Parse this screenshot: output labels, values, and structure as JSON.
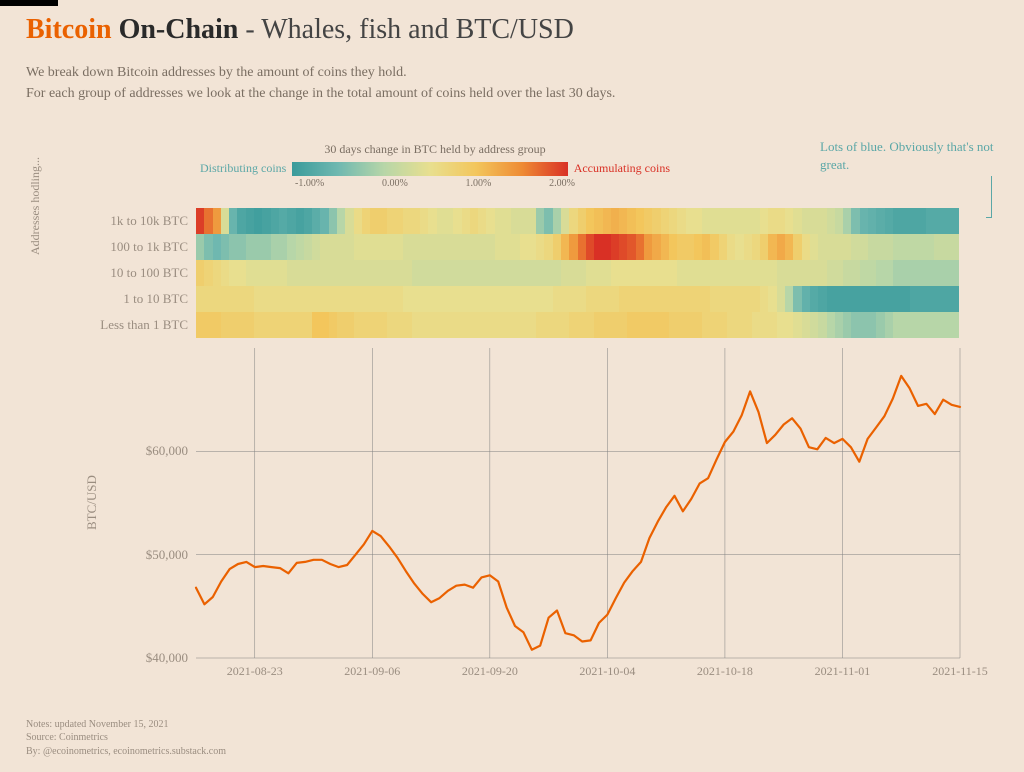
{
  "header": {
    "title_bitcoin": "Bitcoin",
    "title_onchain": "On-Chain",
    "title_rest": " - Whales, fish and BTC/USD",
    "subtitle_line1": "We break down Bitcoin addresses by the amount of coins they hold.",
    "subtitle_line2": "For each group of addresses we look at the change in the total amount of coins held over the last 30 days."
  },
  "legend": {
    "title": "30 days change in BTC held by address group",
    "distributing": "Distributing coins",
    "accumulating": "Accumulating coins",
    "tick_labels": [
      "-1.00%",
      "0.00%",
      "1.00%",
      "2.00%"
    ],
    "gradient_stops": [
      "#3a9b9b",
      "#6fb8b0",
      "#b7d6a8",
      "#e8df8f",
      "#f3c65c",
      "#ee8b34",
      "#d93025"
    ]
  },
  "annotation": {
    "text": "Lots of blue. Obviously that's not great."
  },
  "heatmap": {
    "type": "heatmap",
    "y_axis_label": "Addresses hodling...",
    "row_labels": [
      "1k to 10k BTC",
      "100 to 1k BTC",
      "10 to 100 BTC",
      "1 to 10 BTC",
      "Less than 1 BTC"
    ],
    "n_cols": 92,
    "value_range": [
      -1.5,
      2.5
    ],
    "color_scale": [
      {
        "v": -1.5,
        "c": "#3a9b9b"
      },
      {
        "v": -0.7,
        "c": "#6fb8b0"
      },
      {
        "v": -0.2,
        "c": "#b7d6a8"
      },
      {
        "v": 0.4,
        "c": "#e8df8f"
      },
      {
        "v": 1.0,
        "c": "#f3c65c"
      },
      {
        "v": 1.8,
        "c": "#ee8b34"
      },
      {
        "v": 2.5,
        "c": "#d93025"
      }
    ],
    "rows": [
      [
        2.4,
        2.0,
        1.6,
        0.2,
        -0.8,
        -1.2,
        -1.3,
        -1.4,
        -1.3,
        -1.2,
        -1.1,
        -1.2,
        -1.3,
        -1.2,
        -1.0,
        -0.8,
        -0.5,
        -0.2,
        0.2,
        0.5,
        0.7,
        0.8,
        0.8,
        0.7,
        0.7,
        0.6,
        0.6,
        0.5,
        0.4,
        0.3,
        0.3,
        0.4,
        0.5,
        0.6,
        0.5,
        0.4,
        0.3,
        0.3,
        0.2,
        0.2,
        0.2,
        -0.4,
        -0.6,
        -0.3,
        0.2,
        0.6,
        0.8,
        1.0,
        1.1,
        1.2,
        1.3,
        1.2,
        1.1,
        1.0,
        0.9,
        0.8,
        0.7,
        0.6,
        0.5,
        0.4,
        0.4,
        0.3,
        0.3,
        0.3,
        0.3,
        0.3,
        0.3,
        0.3,
        0.4,
        0.5,
        0.5,
        0.4,
        0.3,
        0.2,
        0.2,
        0.2,
        0.1,
        0.0,
        -0.3,
        -0.6,
        -0.8,
        -0.9,
        -1.0,
        -1.1,
        -1.2,
        -1.2,
        -1.2,
        -1.2,
        -1.1,
        -1.1,
        -1.1,
        -1.1
      ],
      [
        -0.4,
        -0.6,
        -0.7,
        -0.6,
        -0.5,
        -0.5,
        -0.4,
        -0.4,
        -0.4,
        -0.3,
        -0.3,
        -0.2,
        -0.1,
        0.0,
        0.1,
        0.2,
        0.2,
        0.2,
        0.2,
        0.3,
        0.3,
        0.3,
        0.3,
        0.3,
        0.3,
        0.2,
        0.2,
        0.2,
        0.2,
        0.2,
        0.2,
        0.2,
        0.2,
        0.2,
        0.2,
        0.2,
        0.3,
        0.3,
        0.3,
        0.4,
        0.4,
        0.5,
        0.6,
        0.8,
        1.2,
        1.6,
        2.0,
        2.3,
        2.5,
        2.5,
        2.4,
        2.3,
        2.2,
        2.0,
        1.6,
        1.4,
        1.2,
        1.0,
        0.9,
        0.9,
        1.0,
        1.1,
        0.9,
        0.7,
        0.5,
        0.4,
        0.5,
        0.6,
        0.8,
        1.2,
        1.4,
        1.2,
        0.8,
        0.5,
        0.3,
        0.2,
        0.2,
        0.2,
        0.2,
        0.1,
        0.1,
        0.0,
        0.0,
        0.0,
        -0.1,
        -0.1,
        -0.1,
        -0.1,
        -0.1,
        0.0,
        0.0,
        0.0
      ],
      [
        0.8,
        0.7,
        0.6,
        0.5,
        0.4,
        0.4,
        0.3,
        0.3,
        0.3,
        0.3,
        0.3,
        0.2,
        0.2,
        0.2,
        0.2,
        0.2,
        0.2,
        0.2,
        0.2,
        0.2,
        0.2,
        0.2,
        0.2,
        0.2,
        0.2,
        0.2,
        0.1,
        0.1,
        0.1,
        0.1,
        0.1,
        0.1,
        0.1,
        0.1,
        0.1,
        0.1,
        0.1,
        0.1,
        0.1,
        0.1,
        0.1,
        0.1,
        0.1,
        0.1,
        0.2,
        0.2,
        0.2,
        0.3,
        0.3,
        0.3,
        0.4,
        0.4,
        0.4,
        0.4,
        0.4,
        0.4,
        0.4,
        0.4,
        0.3,
        0.3,
        0.3,
        0.3,
        0.3,
        0.3,
        0.3,
        0.3,
        0.3,
        0.3,
        0.3,
        0.3,
        0.2,
        0.2,
        0.2,
        0.2,
        0.2,
        0.2,
        0.1,
        0.1,
        0.0,
        0.0,
        -0.1,
        -0.1,
        -0.2,
        -0.2,
        -0.3,
        -0.3,
        -0.3,
        -0.3,
        -0.3,
        -0.3,
        -0.3,
        -0.3
      ],
      [
        0.6,
        0.6,
        0.6,
        0.6,
        0.6,
        0.6,
        0.6,
        0.5,
        0.5,
        0.5,
        0.5,
        0.5,
        0.5,
        0.5,
        0.5,
        0.5,
        0.5,
        0.5,
        0.5,
        0.5,
        0.5,
        0.5,
        0.5,
        0.5,
        0.5,
        0.4,
        0.4,
        0.4,
        0.4,
        0.4,
        0.4,
        0.4,
        0.4,
        0.4,
        0.4,
        0.4,
        0.4,
        0.4,
        0.4,
        0.4,
        0.4,
        0.4,
        0.4,
        0.5,
        0.5,
        0.5,
        0.5,
        0.6,
        0.6,
        0.6,
        0.6,
        0.7,
        0.7,
        0.7,
        0.7,
        0.7,
        0.7,
        0.7,
        0.7,
        0.7,
        0.7,
        0.7,
        0.6,
        0.6,
        0.6,
        0.6,
        0.6,
        0.6,
        0.5,
        0.4,
        0.2,
        -0.2,
        -0.6,
        -0.9,
        -1.1,
        -1.2,
        -1.3,
        -1.3,
        -1.3,
        -1.3,
        -1.3,
        -1.3,
        -1.3,
        -1.3,
        -1.3,
        -1.3,
        -1.2,
        -1.2,
        -1.2,
        -1.2,
        -1.2,
        -1.2
      ],
      [
        0.9,
        0.9,
        0.9,
        0.8,
        0.8,
        0.8,
        0.8,
        0.7,
        0.7,
        0.7,
        0.7,
        0.7,
        0.7,
        0.7,
        1.0,
        1.0,
        0.9,
        0.8,
        0.8,
        0.7,
        0.7,
        0.7,
        0.7,
        0.6,
        0.6,
        0.6,
        0.5,
        0.5,
        0.5,
        0.5,
        0.5,
        0.5,
        0.5,
        0.5,
        0.5,
        0.5,
        0.5,
        0.5,
        0.5,
        0.5,
        0.5,
        0.6,
        0.6,
        0.6,
        0.6,
        0.7,
        0.7,
        0.7,
        0.8,
        0.8,
        0.8,
        0.8,
        0.9,
        0.9,
        0.9,
        0.9,
        0.9,
        0.8,
        0.8,
        0.8,
        0.8,
        0.7,
        0.7,
        0.7,
        0.6,
        0.6,
        0.6,
        0.5,
        0.5,
        0.5,
        0.4,
        0.4,
        0.3,
        0.2,
        0.1,
        0.0,
        -0.2,
        -0.3,
        -0.4,
        -0.5,
        -0.5,
        -0.5,
        -0.4,
        -0.3,
        -0.2,
        -0.2,
        -0.2,
        -0.2,
        -0.2,
        -0.2,
        -0.2,
        -0.2
      ]
    ]
  },
  "pricechart": {
    "type": "line",
    "y_axis_label": "BTC/USD",
    "ylim": [
      40000,
      70000
    ],
    "yticks": [
      40000,
      50000,
      60000
    ],
    "ytick_labels": [
      "$40,000",
      "$50,000",
      "$60,000"
    ],
    "x_n": 92,
    "xtick_idx": [
      7,
      21,
      35,
      49,
      63,
      77,
      91
    ],
    "xtick_labels": [
      "2021-08-23",
      "2021-09-06",
      "2021-09-20",
      "2021-10-04",
      "2021-10-18",
      "2021-11-01",
      "2021-11-15"
    ],
    "line_color": "#ea6100",
    "line_width": 2.2,
    "grid_color": "#808080",
    "grid_width": 0.5,
    "series": [
      46800,
      45200,
      45900,
      47400,
      48600,
      49100,
      49300,
      48800,
      48900,
      48800,
      48700,
      48200,
      49200,
      49300,
      49500,
      49500,
      49100,
      48800,
      49000,
      50000,
      51000,
      52300,
      51800,
      50800,
      49700,
      48400,
      47200,
      46200,
      45400,
      45800,
      46500,
      47000,
      47100,
      46800,
      47800,
      48000,
      47400,
      44900,
      43100,
      42500,
      40800,
      41200,
      43900,
      44600,
      42400,
      42200,
      41600,
      41700,
      43400,
      44200,
      45800,
      47300,
      48400,
      49300,
      51600,
      53200,
      54600,
      55700,
      54200,
      55400,
      56900,
      57400,
      59200,
      60900,
      61900,
      63500,
      65800,
      63800,
      60800,
      61600,
      62600,
      63200,
      62200,
      60400,
      60200,
      61300,
      60800,
      61200,
      60400,
      59000,
      61200,
      62300,
      63400,
      65100,
      67300,
      66100,
      64400,
      64600,
      63600,
      65000,
      64500,
      64300
    ]
  },
  "footer": {
    "line1": "Notes: updated November 15, 2021",
    "line2": "Source: Coinmetrics",
    "line3": "By: @ecoinometrics, ecoinometrics.substack.com"
  }
}
